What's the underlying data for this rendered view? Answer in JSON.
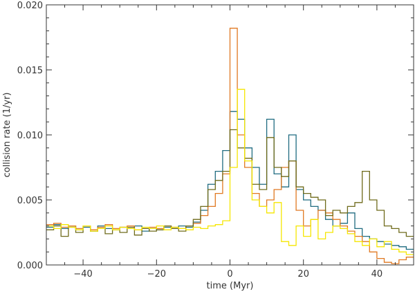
{
  "chart_data": {
    "type": "line",
    "step": true,
    "title": "",
    "xlabel": "time (Myr)",
    "ylabel": "collision rate (1/yr)",
    "xlim": [
      -50,
      50
    ],
    "ylim": [
      0,
      0.02
    ],
    "xticks": [
      -40,
      -20,
      0,
      20,
      40
    ],
    "xtick_labels": [
      "−40",
      "−20",
      "0",
      "20",
      "40"
    ],
    "yticks": [
      0,
      0.005,
      0.01,
      0.015,
      0.02
    ],
    "ytick_labels": [
      "0.000",
      "0.005",
      "0.010",
      "0.015",
      "0.020"
    ],
    "grid": false,
    "legend": "none",
    "x": [
      -50,
      -48,
      -46,
      -44,
      -42,
      -40,
      -38,
      -36,
      -34,
      -32,
      -30,
      -28,
      -26,
      -24,
      -22,
      -20,
      -18,
      -16,
      -14,
      -12,
      -10,
      -8,
      -6,
      -4,
      -2,
      0,
      2,
      4,
      6,
      8,
      10,
      12,
      14,
      16,
      18,
      20,
      22,
      24,
      26,
      28,
      30,
      32,
      34,
      36,
      38,
      40,
      42,
      44,
      46,
      48
    ],
    "series": [
      {
        "color": "#1f6b80",
        "values": [
          0.0029,
          0.0031,
          0.0028,
          0.003,
          0.0027,
          0.0029,
          0.0026,
          0.003,
          0.0028,
          0.0027,
          0.0029,
          0.0028,
          0.003,
          0.0026,
          0.0028,
          0.0027,
          0.0029,
          0.0028,
          0.003,
          0.0029,
          0.0033,
          0.0042,
          0.0062,
          0.0072,
          0.0088,
          0.0118,
          0.0112,
          0.009,
          0.0075,
          0.0062,
          0.0112,
          0.007,
          0.006,
          0.01,
          0.0058,
          0.005,
          0.0045,
          0.0042,
          0.0035,
          0.003,
          0.0032,
          0.004,
          0.0028,
          0.0022,
          0.002,
          0.0018,
          0.0016,
          0.0015,
          0.0014,
          0.0012
        ]
      },
      {
        "color": "#e07820",
        "values": [
          0.0031,
          0.0032,
          0.0029,
          0.003,
          0.0028,
          0.003,
          0.0027,
          0.0029,
          0.0031,
          0.0028,
          0.0029,
          0.003,
          0.0027,
          0.0028,
          0.0029,
          0.0028,
          0.003,
          0.0029,
          0.0028,
          0.003,
          0.0032,
          0.0038,
          0.0045,
          0.0055,
          0.007,
          0.0182,
          0.01,
          0.0075,
          0.0055,
          0.0045,
          0.005,
          0.0058,
          0.0075,
          0.008,
          0.0042,
          0.003,
          0.0035,
          0.0042,
          0.004,
          0.0035,
          0.003,
          0.0026,
          0.0022,
          0.0018,
          0.001,
          0.0005,
          0.0002,
          0.0001,
          0.0004,
          0.0006
        ]
      },
      {
        "color": "#6e6a1a",
        "values": [
          0.0027,
          0.003,
          0.0022,
          0.0029,
          0.0025,
          0.003,
          0.0026,
          0.0028,
          0.0024,
          0.0027,
          0.0025,
          0.0029,
          0.0023,
          0.0028,
          0.0026,
          0.0027,
          0.003,
          0.0028,
          0.0026,
          0.003,
          0.0035,
          0.0045,
          0.0058,
          0.0065,
          0.0072,
          0.0104,
          0.009,
          0.0082,
          0.0062,
          0.0058,
          0.0098,
          0.0075,
          0.0068,
          0.008,
          0.006,
          0.0055,
          0.0052,
          0.005,
          0.0038,
          0.0042,
          0.004,
          0.0045,
          0.0048,
          0.0072,
          0.005,
          0.0042,
          0.003,
          0.0028,
          0.0025,
          0.0022
        ]
      },
      {
        "color": "#f5e600",
        "values": [
          0.003,
          0.0028,
          0.0031,
          0.0029,
          0.0027,
          0.003,
          0.0026,
          0.0028,
          0.003,
          0.0027,
          0.0029,
          0.0028,
          0.0027,
          0.0029,
          0.0028,
          0.003,
          0.0027,
          0.0029,
          0.0028,
          0.0027,
          0.0029,
          0.0028,
          0.003,
          0.0031,
          0.0034,
          0.0075,
          0.0135,
          0.008,
          0.005,
          0.0045,
          0.004,
          0.0048,
          0.0018,
          0.0015,
          0.003,
          0.0022,
          0.0035,
          0.002,
          0.0025,
          0.003,
          0.0028,
          0.0024,
          0.0018,
          0.0015,
          0.002,
          0.0014,
          0.0018,
          0.0012,
          0.001,
          0.0008
        ]
      }
    ]
  }
}
